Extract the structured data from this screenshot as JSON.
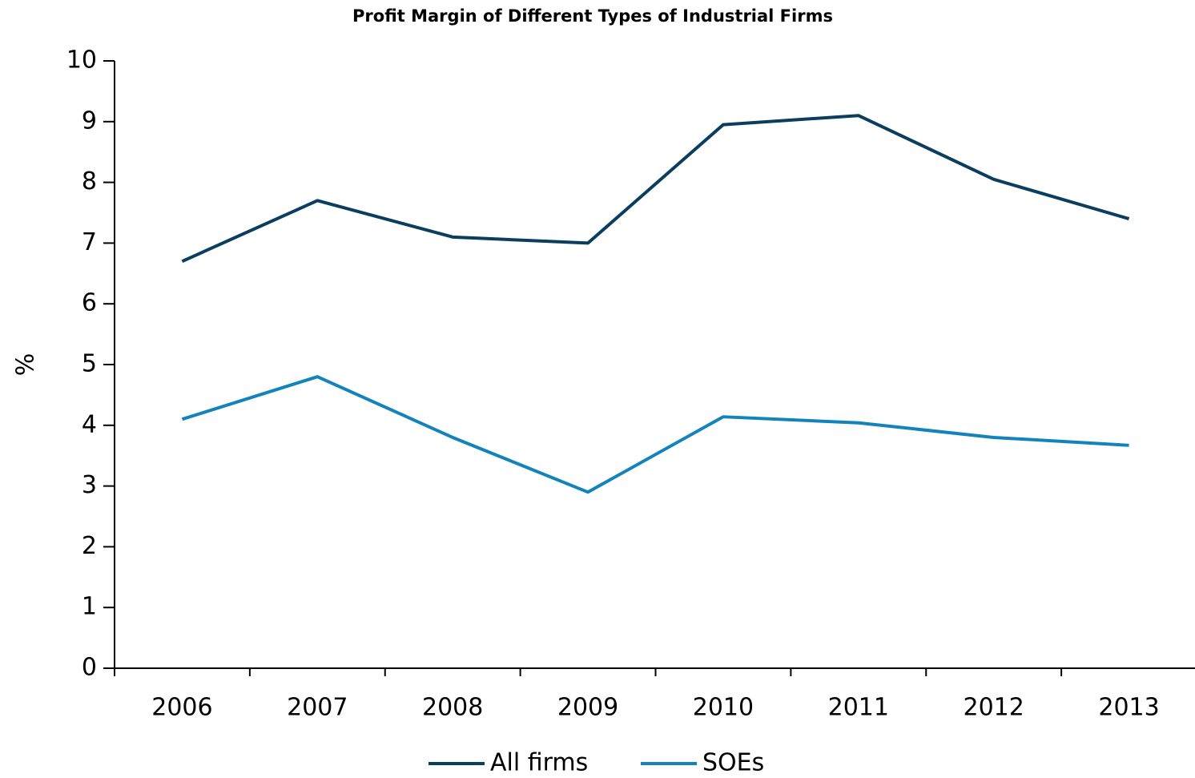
{
  "chart_data": {
    "type": "line",
    "title": "Profit Margin of Different Types of Industrial Firms",
    "y_label": "%",
    "categories": [
      "2006",
      "2007",
      "2008",
      "2009",
      "2010",
      "2011",
      "2012",
      "2013"
    ],
    "series": [
      {
        "name": "All firms",
        "color": "#0b3d5e",
        "values": [
          6.7,
          7.7,
          7.1,
          7.0,
          8.95,
          9.1,
          8.05,
          7.4
        ]
      },
      {
        "name": "SOEs",
        "color": "#1283bb",
        "values": [
          4.1,
          4.8,
          3.8,
          2.9,
          4.14,
          4.04,
          3.8,
          3.67
        ]
      }
    ],
    "ylim": [
      0,
      10
    ],
    "yticks": [
      0,
      1,
      2,
      3,
      4,
      5,
      6,
      7,
      8,
      9,
      10
    ],
    "grid": false,
    "legend": "bottom"
  }
}
